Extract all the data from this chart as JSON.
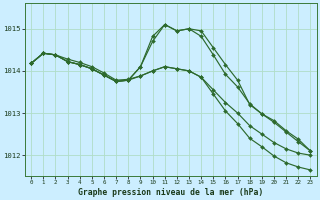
{
  "xlabel": "Graphe pression niveau de la mer (hPa)",
  "bg_color": "#cceeff",
  "grid_color": "#b0ddc8",
  "line_color": "#2d6a2d",
  "x_ticks": [
    0,
    1,
    2,
    3,
    4,
    5,
    6,
    7,
    8,
    9,
    10,
    11,
    12,
    13,
    14,
    15,
    16,
    17,
    18,
    19,
    20,
    21,
    22,
    23
  ],
  "ylim": [
    1011.5,
    1015.6
  ],
  "yticks": [
    1012,
    1013,
    1014,
    1015
  ],
  "line1": [
    1014.18,
    1014.42,
    1014.38,
    1014.28,
    1014.2,
    1014.1,
    1013.95,
    1013.78,
    1013.8,
    1013.88,
    1014.0,
    1014.1,
    1014.05,
    1014.0,
    1013.85,
    1013.55,
    1013.25,
    1013.0,
    1012.7,
    1012.5,
    1012.3,
    1012.15,
    1012.05,
    1012.0
  ],
  "line2": [
    1014.18,
    1014.42,
    1014.38,
    1014.22,
    1014.15,
    1014.05,
    1013.9,
    1013.75,
    1013.78,
    1014.1,
    1014.7,
    1015.1,
    1014.95,
    1015.0,
    1014.82,
    1014.38,
    1013.92,
    1013.62,
    1013.22,
    1012.98,
    1012.82,
    1012.58,
    1012.38,
    1012.1
  ],
  "line3": [
    1014.18,
    1014.42,
    1014.38,
    1014.22,
    1014.15,
    1014.05,
    1013.9,
    1013.75,
    1013.78,
    1014.1,
    1014.82,
    1015.1,
    1014.95,
    1015.0,
    1014.95,
    1014.55,
    1014.15,
    1013.78,
    1013.2,
    1012.98,
    1012.78,
    1012.55,
    1012.32,
    1012.1
  ],
  "line4": [
    1014.18,
    1014.42,
    1014.38,
    1014.22,
    1014.15,
    1014.05,
    1013.9,
    1013.75,
    1013.78,
    1013.88,
    1014.0,
    1014.1,
    1014.05,
    1014.0,
    1013.85,
    1013.45,
    1013.05,
    1012.75,
    1012.4,
    1012.2,
    1011.98,
    1011.82,
    1011.72,
    1011.65
  ]
}
